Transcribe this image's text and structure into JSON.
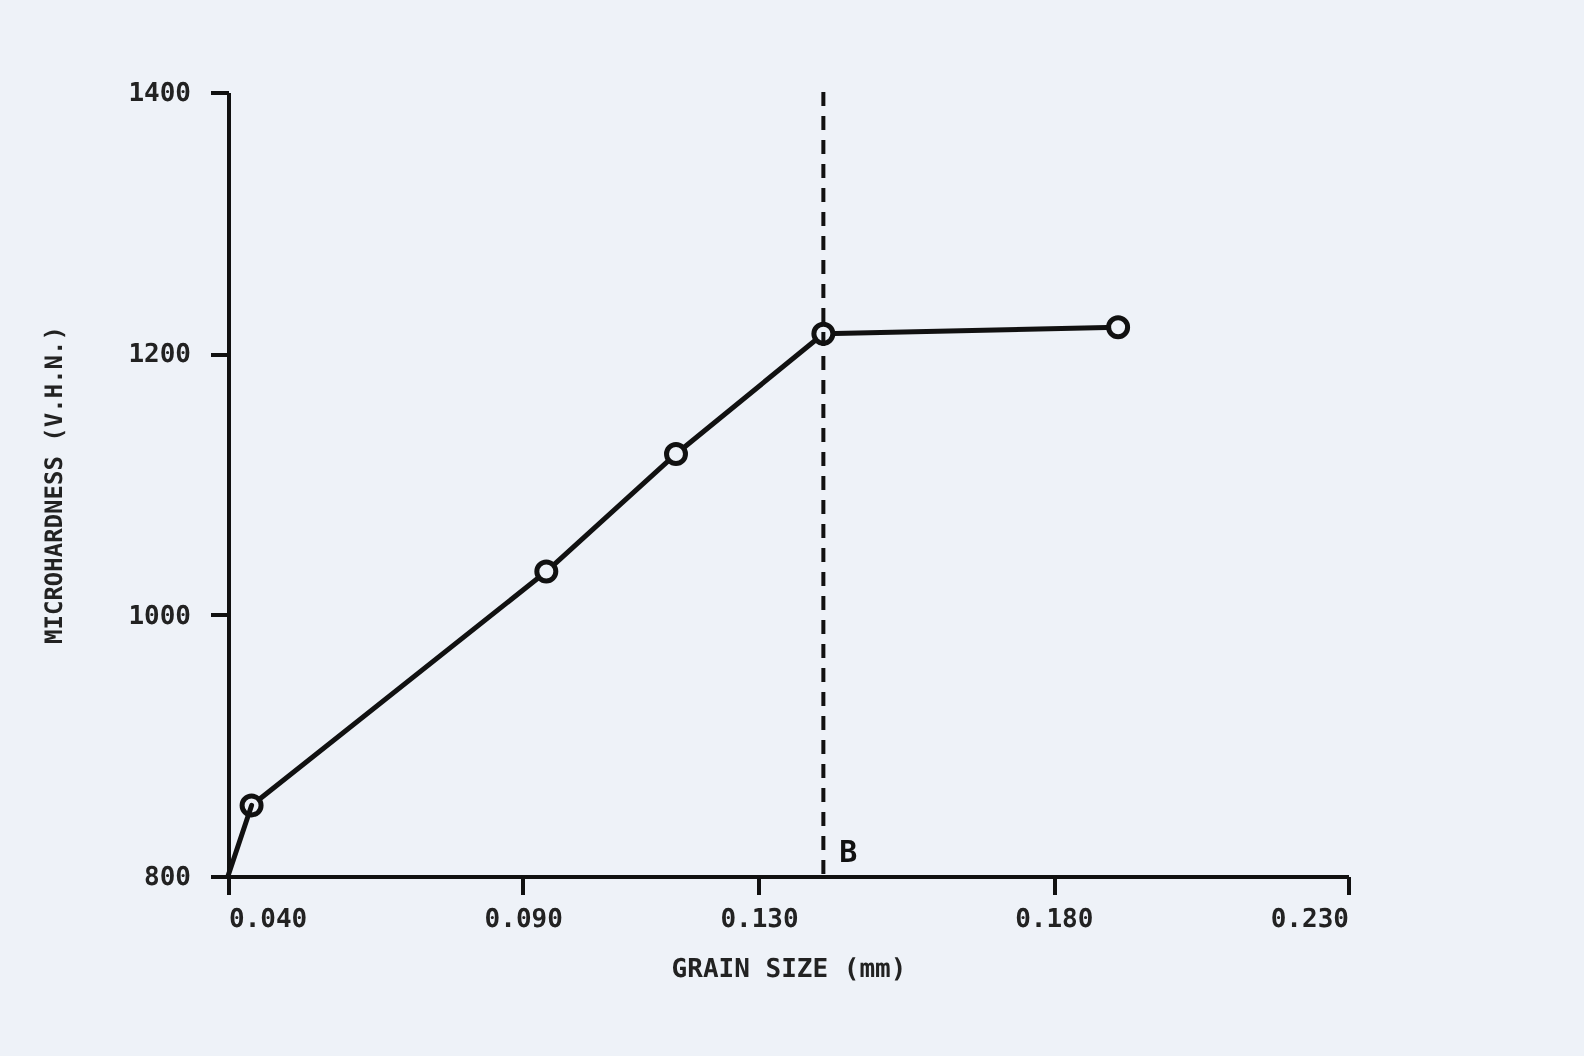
{
  "chart_data": {
    "type": "line",
    "xlabel": "GRAIN SIZE (mm)",
    "ylabel": "MICROHARDNESS (V.H.N.)",
    "xlim": [
      0.04,
      0.23
    ],
    "xticks": [
      {
        "value": 0.04,
        "label": "0.040"
      },
      {
        "value": 0.09,
        "label": "0.090"
      },
      {
        "value": 0.13,
        "label": "0.130"
      },
      {
        "value": 0.18,
        "label": "0.180"
      },
      {
        "value": 0.23,
        "label": "0.230"
      }
    ],
    "ylim": [
      800,
      1400
    ],
    "yticks": [
      800,
      1000,
      1200,
      1400
    ],
    "grid": false,
    "series": [
      {
        "color": "#111111",
        "marker": "circle",
        "line_style": "solid",
        "x": [
          0.044,
          0.094,
          0.116,
          0.141,
          0.191
        ],
        "values": [
          854,
          1033,
          1123,
          1215,
          1220
        ]
      },
      {
        "color": "#111111",
        "marker": "none",
        "line_style": "solid",
        "x": [
          0.04,
          0.044
        ],
        "values": [
          800,
          854
        ]
      }
    ],
    "ref_lines": [
      {
        "axis": "x",
        "value": 0.141,
        "label": "B",
        "line_style": "dashed",
        "color": "#111111"
      }
    ]
  }
}
